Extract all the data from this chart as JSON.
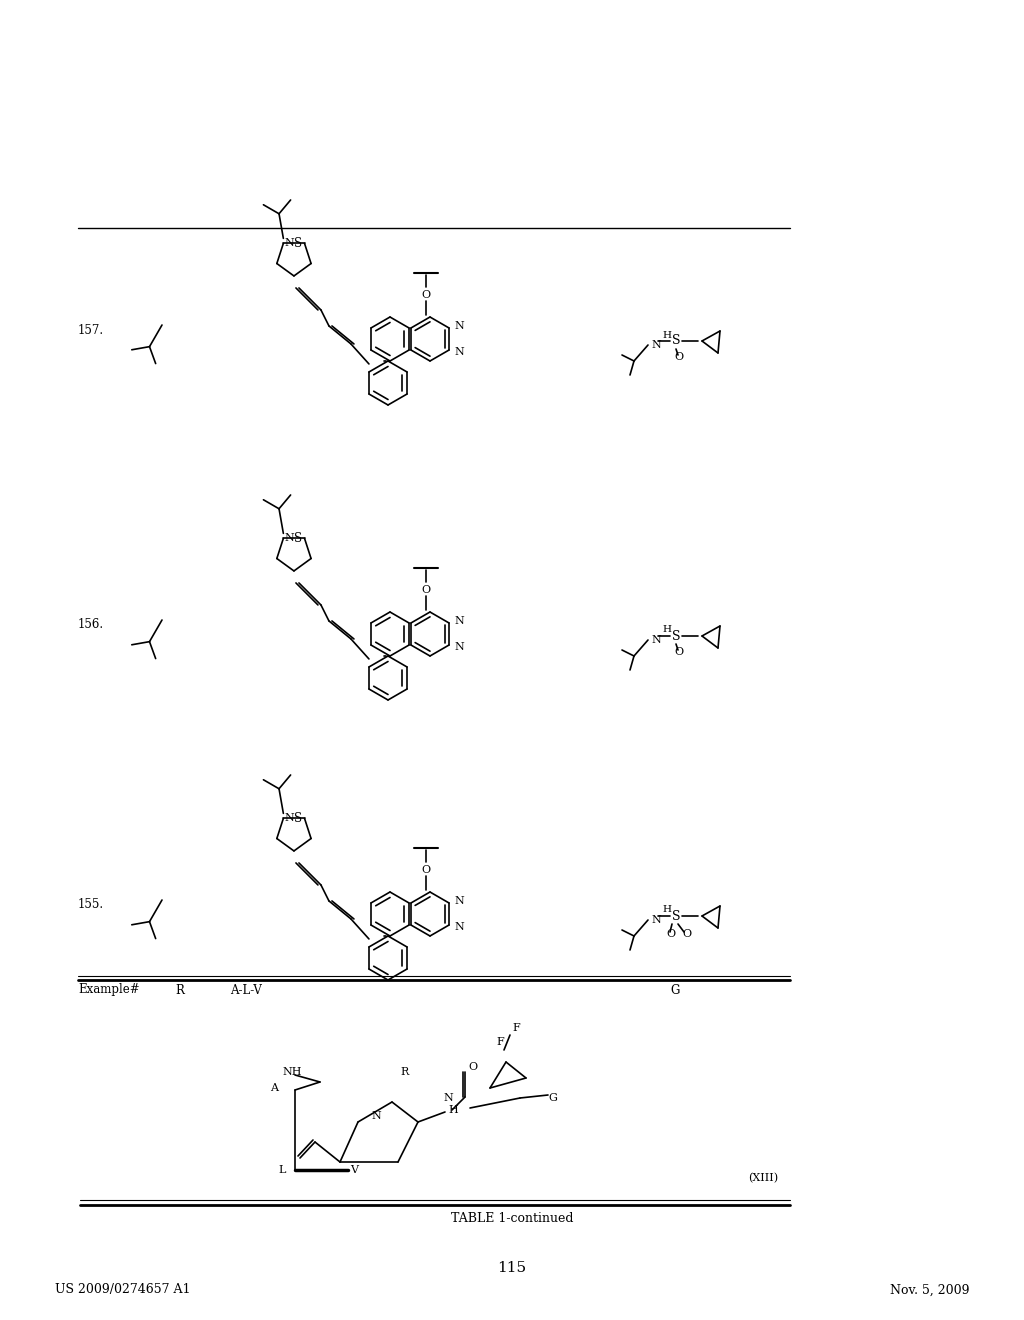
{
  "page_number": "115",
  "left_header": "US 2009/0274657 A1",
  "right_header": "Nov. 5, 2009",
  "table_title": "TABLE 1-continued",
  "compound_label": "(XIII)",
  "col_headers": [
    "Example#",
    "R",
    "A-L-V",
    "G"
  ],
  "examples": [
    "155.",
    "156.",
    "157."
  ],
  "background_color": "#ffffff",
  "text_color": "#000000",
  "line_color": "#000000"
}
